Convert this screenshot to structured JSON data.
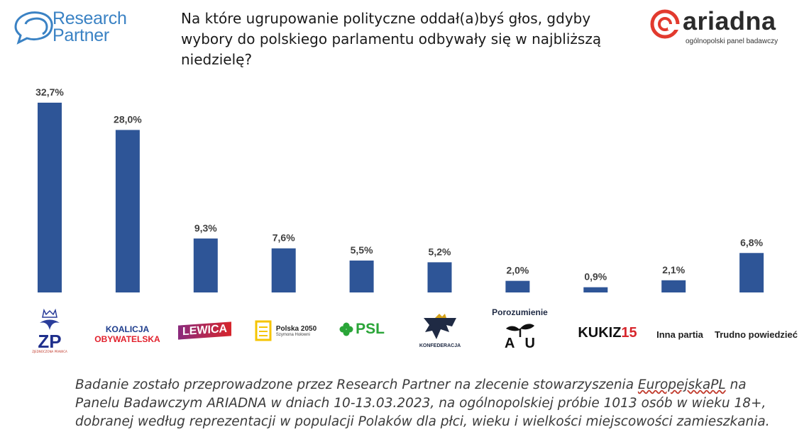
{
  "header": {
    "brand_left_line1": "Research",
    "brand_left_line2": "Partner",
    "question": "Na które ugrupowanie polityczne oddał(a)byś głos, gdyby wybory do polskiego parlamentu odbywały się w najbliższą niedzielę?",
    "brand_right": "ariadna",
    "brand_right_sub": "ogólnopolski panel badawczy"
  },
  "chart_data": {
    "type": "bar",
    "categories": [
      "ZP",
      "KOALICJA OBYWATELSKA",
      "LEWICA",
      "Polska 2050 Szymona Hołowni",
      "PSL",
      "KONFEDERACJA",
      "Porozumienie / AU",
      "KUKIZ15",
      "Inna partia",
      "Trudno powiedzieć"
    ],
    "values": [
      32.7,
      28.0,
      9.3,
      7.6,
      5.5,
      5.2,
      2.0,
      0.9,
      2.1,
      6.8
    ],
    "value_labels": [
      "32,7%",
      "28,0%",
      "9,3%",
      "7,6%",
      "5,5%",
      "5,2%",
      "2,0%",
      "0,9%",
      "2,1%",
      "6,8%"
    ],
    "ylim": [
      0,
      32.7
    ],
    "bar_color": "#2e5597",
    "grid": false,
    "legend": "none"
  },
  "party_labels": {
    "zp_top": "ZP",
    "zp_sub": "ZJEDNOCZONA PRAWICA",
    "ko_line1": "KOALICJA",
    "ko_line2": "OBYWATELSKA",
    "lewica": "LEWICA",
    "p2050_line1": "Polska 2050",
    "p2050_line2": "Szymona Hołowni",
    "psl": "PSL",
    "konf": "KONFEDERACJA",
    "poro_top": "Porozumienie",
    "poro_mark": "AU",
    "kukiz": "KUKIZ",
    "kukiz_num": "15",
    "inna": "Inna partia",
    "trudno": "Trudno powiedzieć"
  },
  "colors": {
    "rp_blue": "#3a82c4",
    "ariadna_red": "#e23a2e",
    "ko_blue": "#1d3c8c",
    "ko_red": "#e2202c",
    "lewica_purple": "#8a2a7d",
    "lewica_red": "#d7262c",
    "p2050_yellow": "#f5c400",
    "psl_green": "#2aa538"
  },
  "footer": {
    "text_before": "Badanie zostało przeprowadzone przez Research Partner na zlecenie stowarzyszenia ",
    "org": "EuropejskaPL",
    "text_after": " na Panelu Badawczym ARIADNA w dniach 10-13.03.2023, na ogólnopolskiej próbie 1013 osób w wieku 18+, dobranej według reprezentacji w populacji Polaków dla płci, wieku i wielkości miejscowości zamieszkania."
  }
}
